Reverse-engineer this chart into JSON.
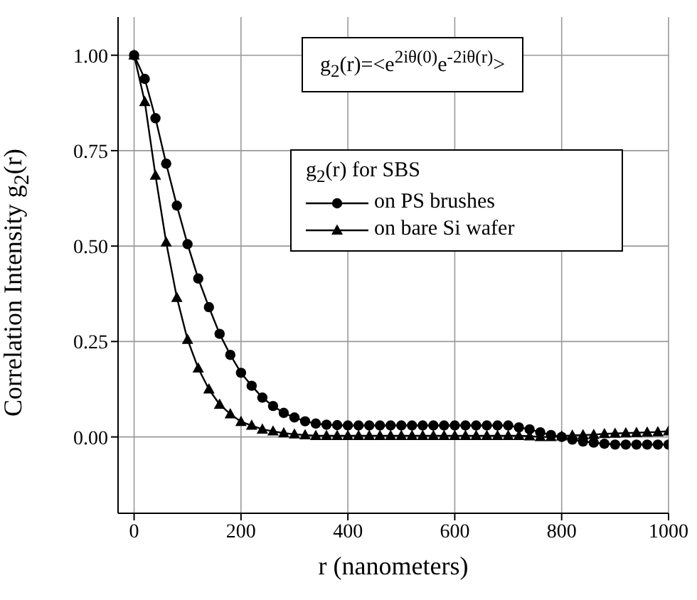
{
  "chart_data": {
    "type": "line",
    "xlabel": "r (nanometers)",
    "ylabel": "Correlation Intensity g$_{2}$(r)",
    "legend_title": "g$_{2}$(r) for SBS",
    "annotations": [
      "g$_{2}$(r)=<e$^{2iθ(0)}$e$^{-2iθ(r)}$>"
    ],
    "x": [
      0,
      20,
      40,
      60,
      80,
      100,
      120,
      140,
      160,
      180,
      200,
      220,
      240,
      260,
      280,
      300,
      320,
      340,
      360,
      380,
      400,
      420,
      440,
      460,
      480,
      500,
      520,
      540,
      560,
      580,
      600,
      620,
      640,
      660,
      680,
      700,
      720,
      740,
      760,
      780,
      800,
      820,
      840,
      860,
      880,
      900,
      920,
      940,
      960,
      980,
      1000
    ],
    "series": [
      {
        "name": "on PS brushes",
        "color": "#000000",
        "marker": "circle",
        "values": [
          1.0,
          0.938,
          0.835,
          0.716,
          0.606,
          0.505,
          0.415,
          0.34,
          0.27,
          0.215,
          0.168,
          0.134,
          0.103,
          0.081,
          0.063,
          0.051,
          0.041,
          0.035,
          0.032,
          0.031,
          0.03,
          0.03,
          0.03,
          0.03,
          0.03,
          0.03,
          0.03,
          0.03,
          0.03,
          0.03,
          0.03,
          0.03,
          0.03,
          0.03,
          0.03,
          0.03,
          0.025,
          0.02,
          0.012,
          0.005,
          0.0,
          -0.007,
          -0.012,
          -0.015,
          -0.018,
          -0.02,
          -0.02,
          -0.02,
          -0.02,
          -0.02,
          -0.02
        ]
      },
      {
        "name": "on bare Si wafer",
        "color": "#000000",
        "marker": "triangle",
        "values": [
          1.0,
          0.878,
          0.685,
          0.51,
          0.365,
          0.255,
          0.18,
          0.125,
          0.085,
          0.06,
          0.04,
          0.03,
          0.02,
          0.015,
          0.01,
          0.007,
          0.005,
          0.003,
          0.003,
          0.003,
          0.003,
          0.003,
          0.003,
          0.003,
          0.003,
          0.003,
          0.003,
          0.003,
          0.003,
          0.003,
          0.003,
          0.003,
          0.003,
          0.003,
          0.003,
          0.003,
          0.003,
          0.002,
          0.0,
          0.0,
          0.002,
          0.004,
          0.005,
          0.006,
          0.008,
          0.009,
          0.01,
          0.011,
          0.012,
          0.013,
          0.015
        ]
      }
    ],
    "xlim": [
      -30,
      1000
    ],
    "xticks": [
      0,
      200,
      400,
      600,
      800,
      1000
    ],
    "ylim": [
      -0.2,
      1.1
    ],
    "yticks": [
      {
        "value": 0,
        "label": "0.00"
      },
      {
        "value": 0.25,
        "label": "0.25"
      },
      {
        "value": 0.5,
        "label": "0.50"
      },
      {
        "value": 0.75,
        "label": "0.75"
      },
      {
        "value": 1,
        "label": "1.00"
      }
    ],
    "grid": true,
    "legend": "top right",
    "line_style": "solid"
  }
}
